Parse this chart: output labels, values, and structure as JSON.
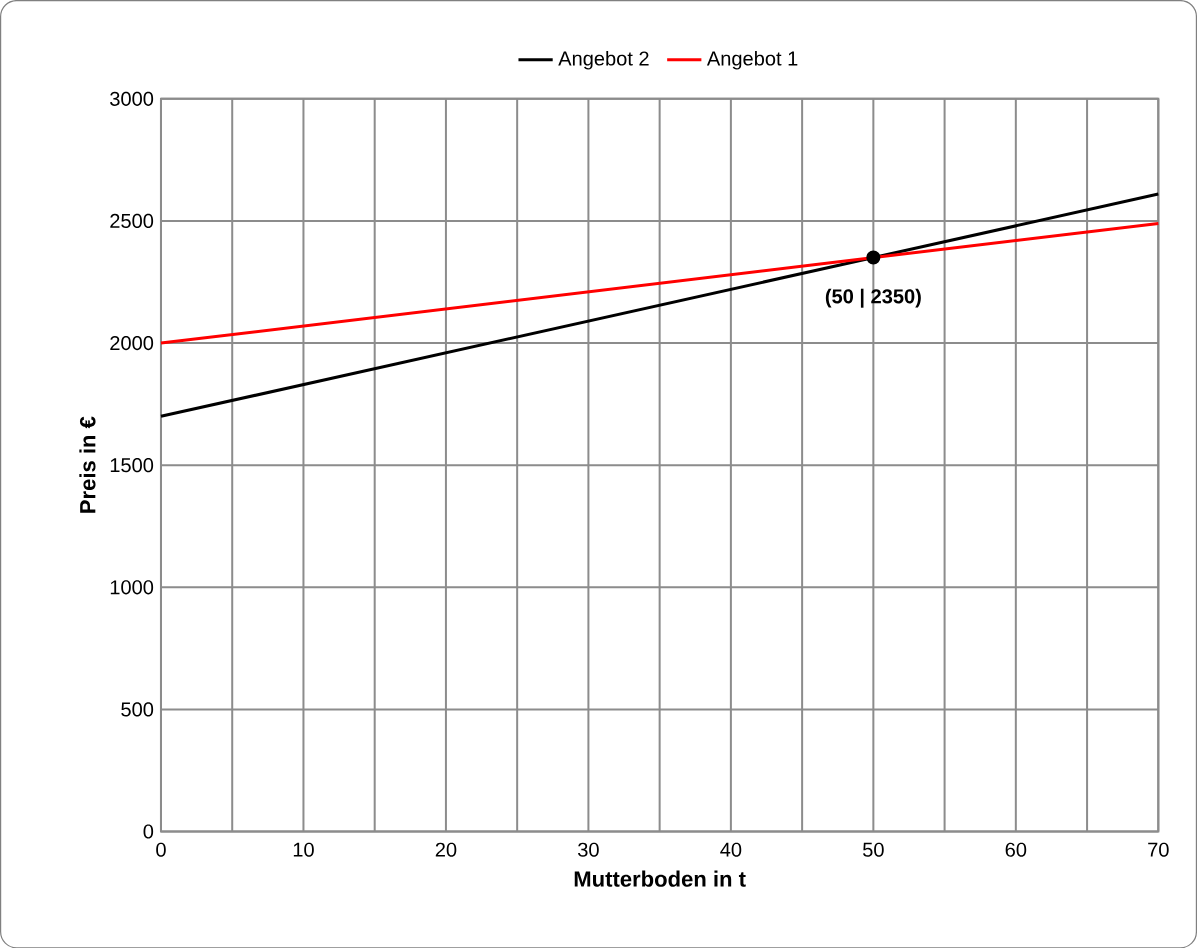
{
  "chart_data": {
    "type": "line",
    "xlabel": "Mutterboden in t",
    "ylabel": "Preis in €",
    "xlim": [
      0,
      70
    ],
    "ylim": [
      0,
      3000
    ],
    "xticks": [
      0,
      {
        "value": 5,
        "label": null
      },
      10,
      {
        "value": 15,
        "label": null
      },
      20,
      {
        "value": 25,
        "label": null
      },
      30,
      {
        "value": 35,
        "label": null
      },
      40,
      {
        "value": 45,
        "label": null
      },
      50,
      {
        "value": 55,
        "label": null
      },
      60,
      {
        "value": 65,
        "label": null
      },
      70
    ],
    "yticks": [
      0,
      500,
      1000,
      1500,
      2000,
      2500,
      3000
    ],
    "grid": true,
    "legend": "top",
    "marker": "none",
    "line_style": "solid",
    "series": [
      {
        "name": "Angebot 2",
        "color": "#000000",
        "x": [
          0,
          70
        ],
        "values": [
          1700,
          2610
        ]
      },
      {
        "name": "Angebot 1",
        "color": "#ff0000",
        "x": [
          0,
          70
        ],
        "values": [
          2000,
          2490
        ]
      },
      {
        "type": "scatter",
        "color": "#000000",
        "marker": "circle",
        "x": [
          50
        ],
        "values": [
          2350
        ]
      }
    ],
    "annotations": [
      {
        "text": "(50 | 2350)",
        "x": 50,
        "y": 2350
      }
    ]
  }
}
